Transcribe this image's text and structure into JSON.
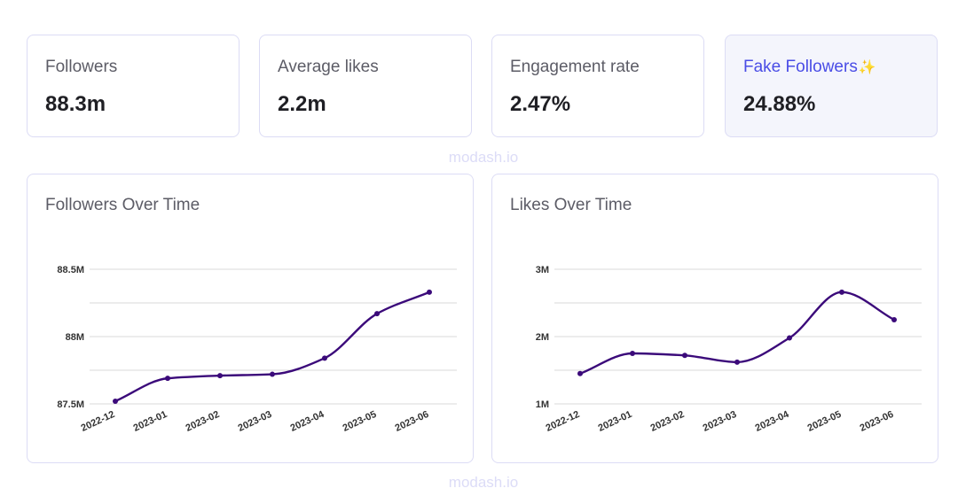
{
  "stats": [
    {
      "label": "Followers",
      "value": "88.3m"
    },
    {
      "label": "Average likes",
      "value": "2.2m"
    },
    {
      "label": "Engagement rate",
      "value": "2.47%"
    },
    {
      "label": "Fake Followers",
      "value": "24.88%",
      "sparkle": "✨"
    }
  ],
  "watermark": "modash.io",
  "colors": {
    "line": "#3b0a7a",
    "accent": "#4a4de6",
    "border": "#dcdcf5",
    "highlight_bg": "#f4f5fc",
    "grid": "#d9d9d9"
  },
  "chart_data": [
    {
      "type": "line",
      "title": "Followers Over Time",
      "x": [
        "2022-12",
        "2023-01",
        "2023-02",
        "2023-03",
        "2023-04",
        "2023-05",
        "2023-06"
      ],
      "series": [
        {
          "values": [
            87.52,
            87.69,
            87.71,
            87.72,
            87.84,
            88.17,
            88.33
          ]
        }
      ],
      "yticks": [
        87.5,
        88,
        88.5
      ],
      "ytick_labels": [
        "87.5M",
        "88M",
        "88.5M"
      ],
      "ylim": [
        87.5,
        88.5
      ],
      "grid": true
    },
    {
      "type": "line",
      "title": "Likes Over Time",
      "x": [
        "2022-12",
        "2023-01",
        "2023-02",
        "2023-03",
        "2023-04",
        "2023-05",
        "2023-06"
      ],
      "series": [
        {
          "values": [
            1.45,
            1.75,
            1.72,
            1.62,
            1.98,
            2.66,
            2.25
          ]
        }
      ],
      "yticks": [
        1,
        2,
        3
      ],
      "ytick_labels": [
        "1M",
        "2M",
        "3M"
      ],
      "ylim": [
        1,
        3
      ],
      "grid": true
    }
  ]
}
